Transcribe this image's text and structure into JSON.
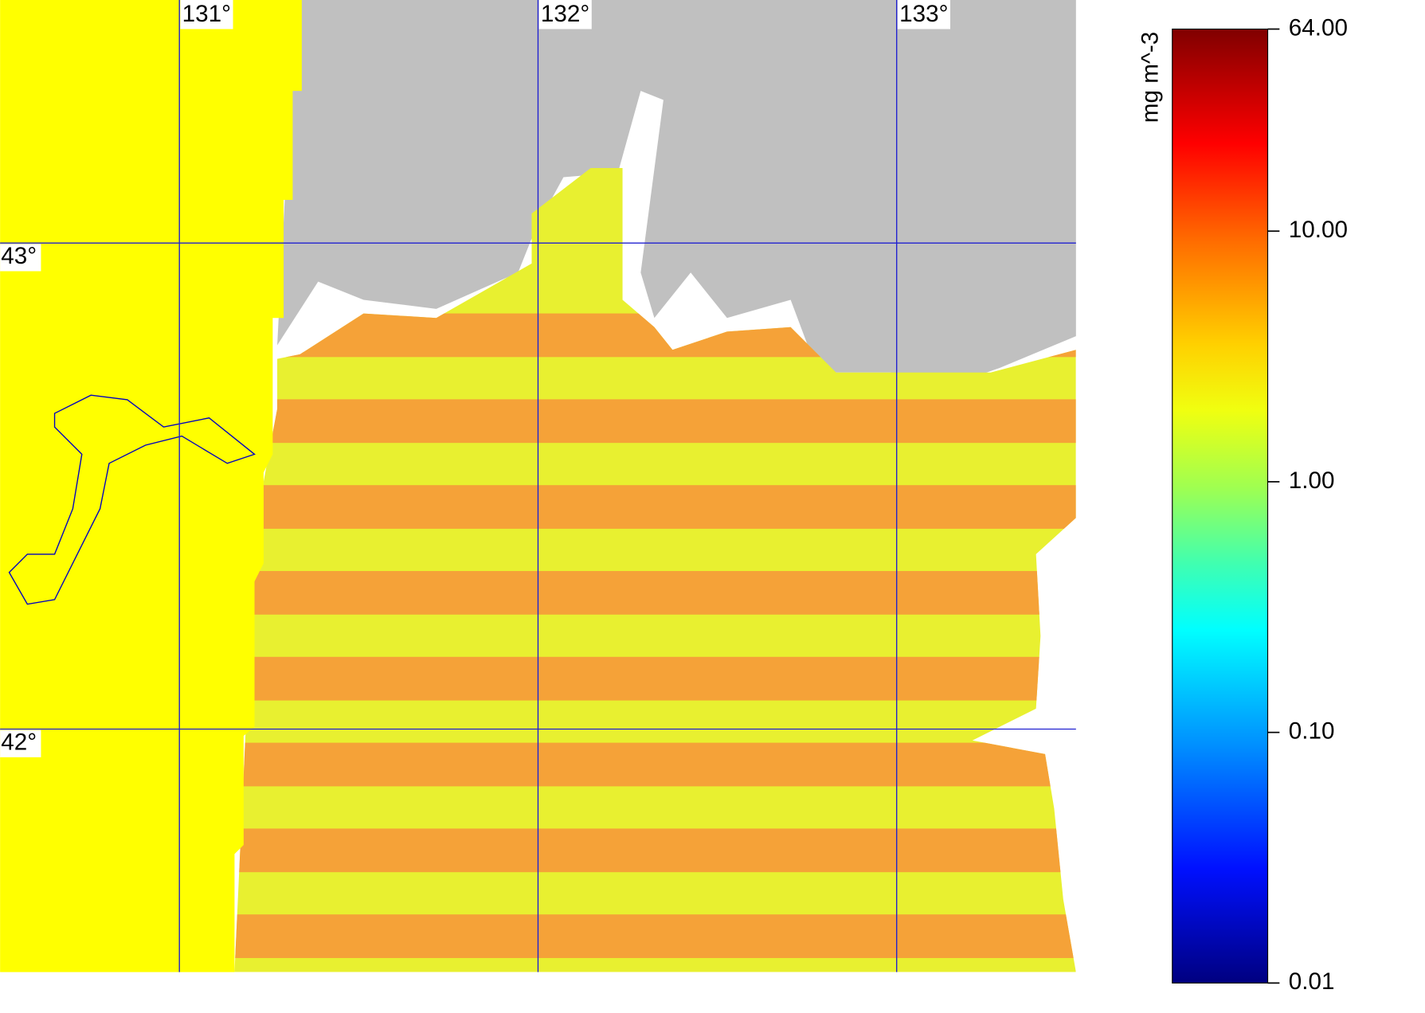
{
  "map": {
    "xlim": [
      130.5,
      133.5
    ],
    "ylim": [
      41.5,
      43.5
    ],
    "lon_ticks": [
      {
        "value": 131,
        "label": "131°"
      },
      {
        "value": 132,
        "label": "132°"
      },
      {
        "value": 133,
        "label": "133°"
      }
    ],
    "lat_ticks": [
      {
        "value": 43,
        "label": "43°"
      },
      {
        "value": 42,
        "label": "42°"
      }
    ]
  },
  "colorbar": {
    "label": "mg m^-3",
    "scale": "log",
    "lim": [
      0.01,
      64
    ],
    "ticks": [
      {
        "value": 64,
        "label": "64.00"
      },
      {
        "value": 10,
        "label": "10.00"
      },
      {
        "value": 1,
        "label": "1.00"
      },
      {
        "value": 0.1,
        "label": "0.10"
      },
      {
        "value": 0.01,
        "label": "0.01"
      }
    ]
  }
}
